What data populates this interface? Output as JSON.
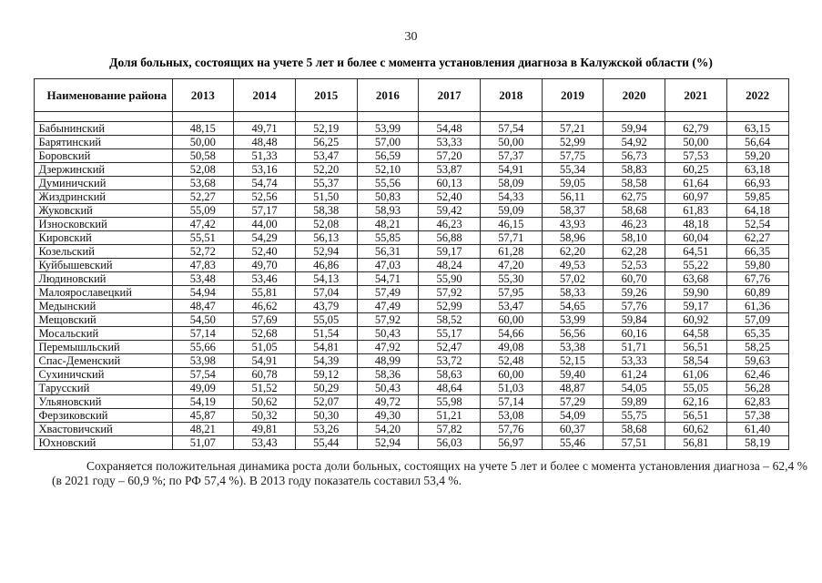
{
  "page": {
    "number": "30"
  },
  "title": "Доля больных, состоящих на учете 5 лет и более с момента установления диагноза в Калужской области (%)",
  "table": {
    "header": {
      "name_label": "Наименование района",
      "years": [
        "2013",
        "2014",
        "2015",
        "2016",
        "2017",
        "2018",
        "2019",
        "2020",
        "2021",
        "2022"
      ]
    },
    "rows": [
      {
        "district": "Бабынинский",
        "values": [
          "48,15",
          "49,71",
          "52,19",
          "53,99",
          "54,48",
          "57,54",
          "57,21",
          "59,94",
          "62,79",
          "63,15"
        ]
      },
      {
        "district": "Барятинский",
        "values": [
          "50,00",
          "48,48",
          "56,25",
          "57,00",
          "53,33",
          "50,00",
          "52,99",
          "54,92",
          "50,00",
          "56,64"
        ]
      },
      {
        "district": "Боровский",
        "values": [
          "50,58",
          "51,33",
          "53,47",
          "56,59",
          "57,20",
          "57,37",
          "57,75",
          "56,73",
          "57,53",
          "59,20"
        ]
      },
      {
        "district": "Дзержинский",
        "values": [
          "52,08",
          "53,16",
          "52,20",
          "52,10",
          "53,87",
          "54,91",
          "55,34",
          "58,83",
          "60,25",
          "63,18"
        ]
      },
      {
        "district": "Думиничский",
        "values": [
          "53,68",
          "54,74",
          "55,37",
          "55,56",
          "60,13",
          "58,09",
          "59,05",
          "58,58",
          "61,64",
          "66,93"
        ]
      },
      {
        "district": "Жиздринский",
        "values": [
          "52,27",
          "52,56",
          "51,50",
          "50,83",
          "52,40",
          "54,33",
          "56,11",
          "62,75",
          "60,97",
          "59,85"
        ]
      },
      {
        "district": "Жуковский",
        "values": [
          "55,09",
          "57,17",
          "58,38",
          "58,93",
          "59,42",
          "59,09",
          "58,37",
          "58,68",
          "61,83",
          "64,18"
        ]
      },
      {
        "district": "Износковский",
        "values": [
          "47,42",
          "44,00",
          "52,08",
          "48,21",
          "46,23",
          "46,15",
          "43,93",
          "46,23",
          "48,18",
          "52,54"
        ]
      },
      {
        "district": "Кировский",
        "values": [
          "55,51",
          "54,29",
          "56,13",
          "55,85",
          "56,88",
          "57,71",
          "58,96",
          "58,10",
          "60,04",
          "62,27"
        ]
      },
      {
        "district": "Козельский",
        "values": [
          "52,72",
          "52,40",
          "52,94",
          "56,31",
          "59,17",
          "61,28",
          "62,20",
          "62,28",
          "64,51",
          "66,35"
        ]
      },
      {
        "district": "Куйбышевский",
        "values": [
          "47,83",
          "49,70",
          "46,86",
          "47,03",
          "48,24",
          "47,20",
          "49,53",
          "52,53",
          "55,22",
          "59,80"
        ]
      },
      {
        "district": "Людиновский",
        "values": [
          "53,48",
          "53,46",
          "54,13",
          "54,71",
          "55,90",
          "55,30",
          "57,02",
          "60,70",
          "63,68",
          "67,76"
        ]
      },
      {
        "district": "Малоярославецкий",
        "values": [
          "54,94",
          "55,81",
          "57,04",
          "57,49",
          "57,92",
          "57,95",
          "58,33",
          "59,26",
          "59,90",
          "60,89"
        ]
      },
      {
        "district": "Медынский",
        "values": [
          "48,47",
          "46,62",
          "43,79",
          "47,49",
          "52,99",
          "53,47",
          "54,65",
          "57,76",
          "59,17",
          "61,36"
        ]
      },
      {
        "district": "Мещовский",
        "values": [
          "54,50",
          "57,69",
          "55,05",
          "57,92",
          "58,52",
          "60,00",
          "53,99",
          "59,84",
          "60,92",
          "57,09"
        ]
      },
      {
        "district": "Мосальский",
        "values": [
          "57,14",
          "52,68",
          "51,54",
          "50,43",
          "55,17",
          "54,66",
          "56,56",
          "60,16",
          "64,58",
          "65,35"
        ]
      },
      {
        "district": "Перемышльский",
        "values": [
          "55,66",
          "51,05",
          "54,81",
          "47,92",
          "52,47",
          "49,08",
          "53,38",
          "51,71",
          "56,51",
          "58,25"
        ]
      },
      {
        "district": "Спас-Деменский",
        "values": [
          "53,98",
          "54,91",
          "54,39",
          "48,99",
          "53,72",
          "52,48",
          "52,15",
          "53,33",
          "58,54",
          "59,63"
        ]
      },
      {
        "district": "Сухиничский",
        "values": [
          "57,54",
          "60,78",
          "59,12",
          "58,36",
          "58,63",
          "60,00",
          "59,40",
          "61,24",
          "61,06",
          "62,46"
        ]
      },
      {
        "district": "Тарусский",
        "values": [
          "49,09",
          "51,52",
          "50,29",
          "50,43",
          "48,64",
          "51,03",
          "48,87",
          "54,05",
          "55,05",
          "56,28"
        ]
      },
      {
        "district": "Ульяновский",
        "values": [
          "54,19",
          "50,62",
          "52,07",
          "49,72",
          "55,98",
          "57,14",
          "57,29",
          "59,89",
          "62,16",
          "62,83"
        ]
      },
      {
        "district": "Ферзиковский",
        "values": [
          "45,87",
          "50,32",
          "50,30",
          "49,30",
          "51,21",
          "53,08",
          "54,09",
          "55,75",
          "56,51",
          "57,38"
        ]
      },
      {
        "district": "Хвастовичский",
        "values": [
          "48,21",
          "49,81",
          "53,26",
          "54,20",
          "57,82",
          "57,76",
          "60,37",
          "58,68",
          "60,62",
          "61,40"
        ]
      },
      {
        "district": "Юхновский",
        "values": [
          "51,07",
          "53,43",
          "55,44",
          "52,94",
          "56,03",
          "56,97",
          "55,46",
          "57,51",
          "56,81",
          "58,19"
        ]
      }
    ]
  },
  "footer": {
    "text": "Сохраняется положительная динамика роста доли больных, состоящих на учете 5 лет и более с момента установления диагноза – 62,4 % (в 2021 году – 60,9 %; по РФ 57,4 %). В 2013 году показатель составил 53,4 %."
  }
}
